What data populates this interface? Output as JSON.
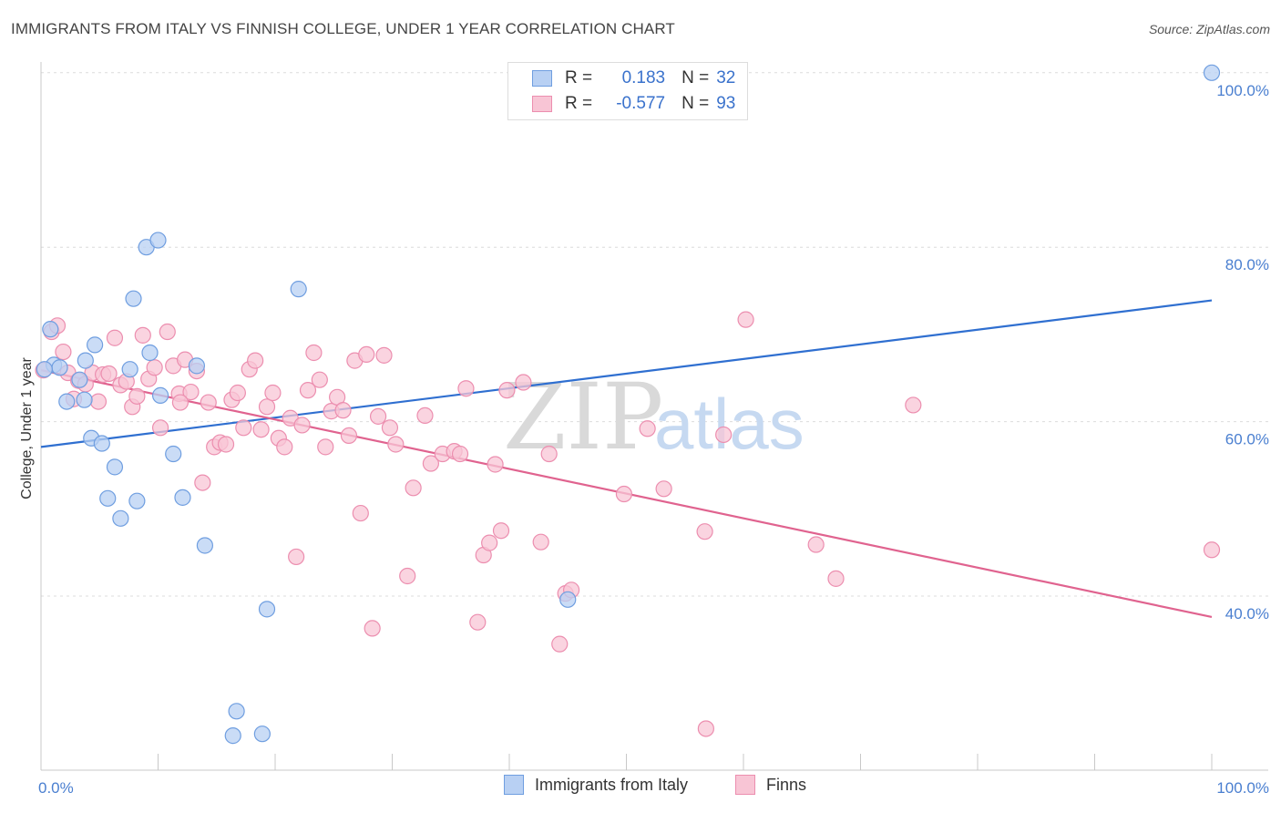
{
  "title": "IMMIGRANTS FROM ITALY VS FINNISH COLLEGE, UNDER 1 YEAR CORRELATION CHART",
  "source": "Source: ZipAtlas.com",
  "watermark": {
    "zip": "ZIP",
    "atlas": "atlas"
  },
  "legend": {
    "rows": [
      {
        "r_label": "R =",
        "r_value": "0.183",
        "n_label": "N =",
        "n_value": "32"
      },
      {
        "r_label": "R =",
        "r_value": "-0.577",
        "n_label": "N =",
        "n_value": "93"
      }
    ]
  },
  "bottom_legend": [
    "Immigrants from Italy",
    "Finns"
  ],
  "colors": {
    "blue_fill": "#b8d0f3",
    "blue_stroke": "#6f9ee0",
    "blue_line": "#2f6fd0",
    "pink_fill": "#f8c5d5",
    "pink_stroke": "#ec8eaf",
    "pink_line": "#e0638f",
    "tick_text": "#4a7fd0"
  },
  "chart_data": {
    "type": "scatter",
    "title": "IMMIGRANTS FROM ITALY VS FINNISH COLLEGE, UNDER 1 YEAR CORRELATION CHART",
    "xlabel": "",
    "ylabel": "College, Under 1 year",
    "xlim": [
      0,
      100
    ],
    "ylim": [
      20,
      102
    ],
    "x_tick_labels": [
      "0.0%",
      "100.0%"
    ],
    "y_ticks": [
      40,
      60,
      80,
      100
    ],
    "y_tick_labels": [
      "40.0%",
      "60.0%",
      "80.0%",
      "100.0%"
    ],
    "grid": true,
    "series": [
      {
        "name": "Immigrants from Italy",
        "r": 0.183,
        "n": 32,
        "trend": {
          "x": [
            0,
            100
          ],
          "y": [
            57.1,
            73.9
          ]
        },
        "points": [
          [
            1.1,
            66.5
          ],
          [
            0.8,
            70.6
          ],
          [
            1.6,
            66.2
          ],
          [
            2.2,
            62.3
          ],
          [
            3.3,
            64.8
          ],
          [
            3.8,
            67.0
          ],
          [
            3.7,
            62.5
          ],
          [
            4.3,
            58.1
          ],
          [
            4.6,
            68.8
          ],
          [
            5.2,
            57.5
          ],
          [
            5.7,
            51.2
          ],
          [
            6.3,
            54.8
          ],
          [
            6.8,
            48.9
          ],
          [
            7.6,
            66.0
          ],
          [
            7.9,
            74.1
          ],
          [
            8.2,
            50.9
          ],
          [
            9.0,
            80.0
          ],
          [
            9.3,
            67.9
          ],
          [
            10.0,
            80.8
          ],
          [
            10.2,
            63.0
          ],
          [
            11.3,
            56.3
          ],
          [
            12.1,
            51.3
          ],
          [
            13.3,
            66.4
          ],
          [
            14.0,
            45.8
          ],
          [
            16.4,
            24.0
          ],
          [
            16.7,
            26.8
          ],
          [
            18.9,
            24.2
          ],
          [
            19.3,
            38.5
          ],
          [
            22.0,
            75.2
          ],
          [
            45.0,
            39.6
          ],
          [
            100.0,
            100.0
          ],
          [
            0.3,
            66.0
          ]
        ]
      },
      {
        "name": "Finns",
        "r": -0.577,
        "n": 93,
        "trend": {
          "x": [
            0,
            100
          ],
          "y": [
            65.9,
            37.6
          ]
        },
        "points": [
          [
            0.2,
            65.9
          ],
          [
            0.9,
            70.3
          ],
          [
            1.4,
            71.0
          ],
          [
            1.9,
            68.0
          ],
          [
            2.3,
            65.6
          ],
          [
            2.8,
            62.6
          ],
          [
            3.2,
            64.7
          ],
          [
            3.8,
            64.3
          ],
          [
            4.4,
            65.6
          ],
          [
            4.9,
            62.3
          ],
          [
            5.3,
            65.4
          ],
          [
            5.8,
            65.5
          ],
          [
            6.3,
            69.6
          ],
          [
            6.8,
            64.2
          ],
          [
            7.3,
            64.6
          ],
          [
            7.8,
            61.7
          ],
          [
            8.2,
            62.9
          ],
          [
            8.7,
            69.9
          ],
          [
            9.2,
            64.9
          ],
          [
            9.7,
            66.2
          ],
          [
            10.2,
            59.3
          ],
          [
            10.8,
            70.3
          ],
          [
            11.3,
            66.4
          ],
          [
            11.8,
            63.2
          ],
          [
            12.3,
            67.1
          ],
          [
            12.8,
            63.4
          ],
          [
            13.3,
            65.8
          ],
          [
            13.8,
            53.0
          ],
          [
            14.3,
            62.2
          ],
          [
            14.8,
            57.1
          ],
          [
            15.3,
            57.6
          ],
          [
            15.8,
            57.4
          ],
          [
            16.3,
            62.5
          ],
          [
            16.8,
            63.3
          ],
          [
            17.3,
            59.3
          ],
          [
            17.8,
            66.0
          ],
          [
            18.3,
            67.0
          ],
          [
            18.8,
            59.1
          ],
          [
            19.3,
            61.7
          ],
          [
            19.8,
            63.3
          ],
          [
            20.3,
            58.1
          ],
          [
            20.8,
            57.1
          ],
          [
            21.3,
            60.4
          ],
          [
            21.8,
            44.5
          ],
          [
            22.3,
            59.6
          ],
          [
            22.8,
            63.6
          ],
          [
            23.3,
            67.9
          ],
          [
            23.8,
            64.8
          ],
          [
            24.3,
            57.1
          ],
          [
            24.8,
            61.2
          ],
          [
            25.3,
            62.8
          ],
          [
            25.8,
            61.3
          ],
          [
            26.3,
            58.4
          ],
          [
            26.8,
            67.0
          ],
          [
            27.3,
            49.5
          ],
          [
            27.8,
            67.7
          ],
          [
            28.3,
            36.3
          ],
          [
            28.8,
            60.6
          ],
          [
            29.3,
            67.6
          ],
          [
            29.8,
            59.3
          ],
          [
            30.3,
            57.4
          ],
          [
            31.3,
            42.3
          ],
          [
            31.8,
            52.4
          ],
          [
            32.8,
            60.7
          ],
          [
            33.3,
            55.2
          ],
          [
            34.3,
            56.3
          ],
          [
            35.3,
            56.6
          ],
          [
            35.8,
            56.3
          ],
          [
            36.3,
            63.8
          ],
          [
            37.3,
            37.0
          ],
          [
            37.8,
            44.7
          ],
          [
            38.3,
            46.1
          ],
          [
            38.8,
            55.1
          ],
          [
            39.3,
            47.5
          ],
          [
            39.8,
            63.6
          ],
          [
            41.2,
            64.5
          ],
          [
            42.7,
            46.2
          ],
          [
            43.4,
            56.3
          ],
          [
            44.3,
            34.5
          ],
          [
            44.8,
            40.3
          ],
          [
            45.3,
            40.7
          ],
          [
            49.8,
            51.7
          ],
          [
            51.8,
            59.2
          ],
          [
            53.2,
            52.3
          ],
          [
            56.7,
            47.4
          ],
          [
            56.8,
            24.8
          ],
          [
            58.3,
            58.5
          ],
          [
            60.2,
            71.7
          ],
          [
            66.2,
            45.9
          ],
          [
            67.9,
            42.0
          ],
          [
            74.5,
            61.9
          ],
          [
            100.0,
            45.3
          ],
          [
            11.9,
            62.2
          ]
        ]
      }
    ]
  }
}
